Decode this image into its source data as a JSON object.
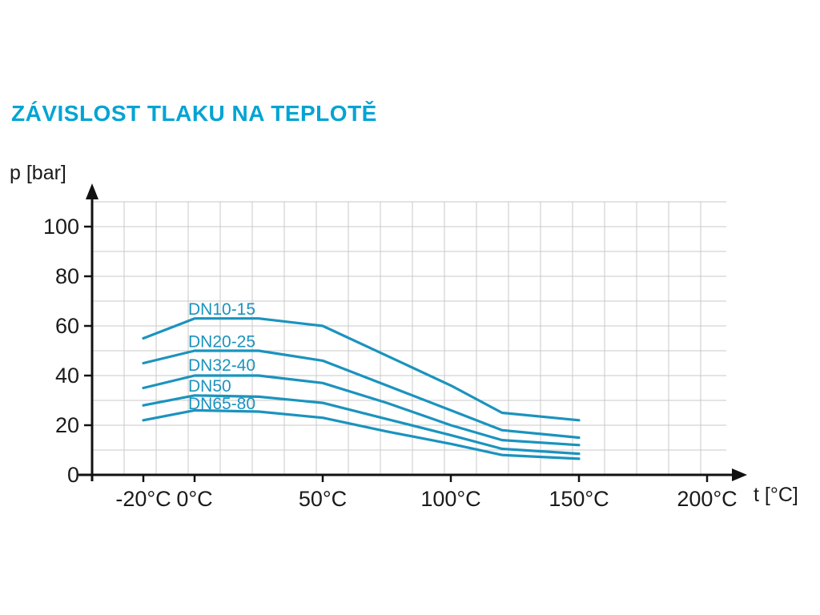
{
  "chart_data": {
    "type": "line",
    "title": "ZÁVISLOST TLAKU NA TEPLOTĚ",
    "xlabel": "t [°C]",
    "ylabel": "p [bar]",
    "xlim": [
      -40,
      207.5
    ],
    "ylim": [
      0,
      110
    ],
    "grid": true,
    "grid_x_step_deg": 12.5,
    "grid_y_step_bar": 10,
    "x_ticks": [
      {
        "v": -20,
        "label": "-20°C"
      },
      {
        "v": 0,
        "label": "0°C"
      },
      {
        "v": 50,
        "label": "50°C"
      },
      {
        "v": 100,
        "label": "100°C"
      },
      {
        "v": 150,
        "label": "150°C"
      },
      {
        "v": 200,
        "label": "200°C"
      }
    ],
    "y_ticks": [
      {
        "v": 0,
        "label": "0"
      },
      {
        "v": 20,
        "label": "20"
      },
      {
        "v": 40,
        "label": "40"
      },
      {
        "v": 60,
        "label": "60"
      },
      {
        "v": 80,
        "label": "80"
      },
      {
        "v": 100,
        "label": "100"
      }
    ],
    "colors": {
      "line": "#1b93be",
      "title": "#00a4d4",
      "grid": "#c9c9c9",
      "axis": "#111111",
      "text": "#1a1a1a"
    },
    "series": [
      {
        "name": "DN10-15",
        "label_at": [
          -2.5,
          64.5
        ],
        "points": [
          [
            -20,
            55
          ],
          [
            0,
            63
          ],
          [
            25,
            63
          ],
          [
            50,
            60
          ],
          [
            75,
            48
          ],
          [
            100,
            36
          ],
          [
            120,
            25
          ],
          [
            150,
            22
          ]
        ]
      },
      {
        "name": "DN20-25",
        "label_at": [
          -2.5,
          51.5
        ],
        "points": [
          [
            -20,
            45
          ],
          [
            0,
            50
          ],
          [
            25,
            50
          ],
          [
            50,
            46
          ],
          [
            75,
            36
          ],
          [
            100,
            26
          ],
          [
            120,
            18
          ],
          [
            150,
            15
          ]
        ]
      },
      {
        "name": "DN32-40",
        "label_at": [
          -2.5,
          42
        ],
        "points": [
          [
            -20,
            35
          ],
          [
            0,
            40
          ],
          [
            25,
            40
          ],
          [
            50,
            37
          ],
          [
            75,
            29
          ],
          [
            100,
            20
          ],
          [
            120,
            14
          ],
          [
            150,
            12
          ]
        ]
      },
      {
        "name": "DN50",
        "label_at": [
          -2.5,
          33.5
        ],
        "points": [
          [
            -20,
            28
          ],
          [
            0,
            32
          ],
          [
            25,
            31.5
          ],
          [
            50,
            29
          ],
          [
            75,
            22.5
          ],
          [
            100,
            16
          ],
          [
            120,
            10.5
          ],
          [
            150,
            8.5
          ]
        ]
      },
      {
        "name": "DN65-80",
        "label_at": [
          -2.5,
          26.5
        ],
        "points": [
          [
            -20,
            22
          ],
          [
            0,
            26
          ],
          [
            25,
            25.5
          ],
          [
            50,
            23
          ],
          [
            75,
            17.5
          ],
          [
            100,
            12.5
          ],
          [
            120,
            8
          ],
          [
            150,
            6.5
          ]
        ]
      }
    ]
  }
}
